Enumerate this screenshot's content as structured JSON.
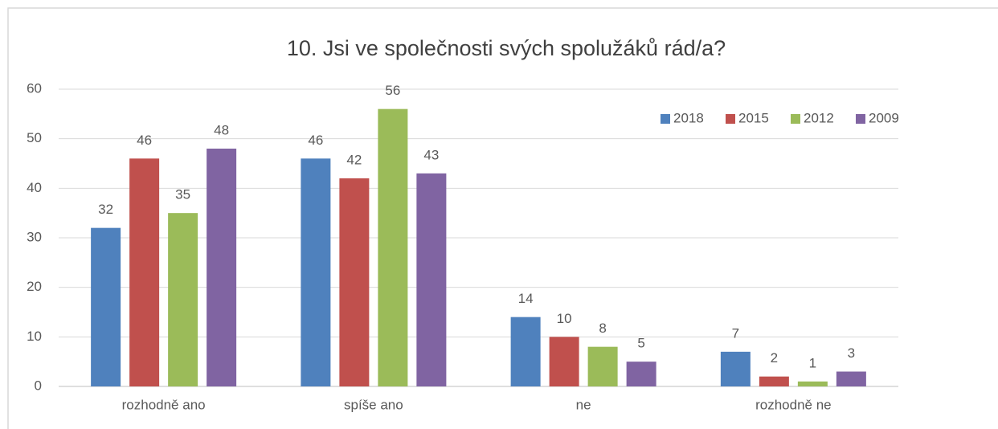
{
  "chart_data": {
    "type": "bar",
    "title": "10. Jsi ve společnosti svých spolužáků rád/a?",
    "categories": [
      "rozhodně ano",
      "spíše ano",
      "ne",
      "rozhodně ne"
    ],
    "series": [
      {
        "name": "2018",
        "color": "#4f81bd",
        "values": [
          32,
          46,
          14,
          7
        ]
      },
      {
        "name": "2015",
        "color": "#c0504d",
        "values": [
          46,
          42,
          10,
          2
        ]
      },
      {
        "name": "2012",
        "color": "#9bbb59",
        "values": [
          35,
          56,
          8,
          1
        ]
      },
      {
        "name": "2009",
        "color": "#8064a2",
        "values": [
          48,
          43,
          5,
          3
        ]
      }
    ],
    "ylim": [
      0,
      60
    ],
    "yticks": [
      0,
      10,
      20,
      30,
      40,
      50,
      60
    ],
    "grid": true,
    "legend": "top-right"
  }
}
